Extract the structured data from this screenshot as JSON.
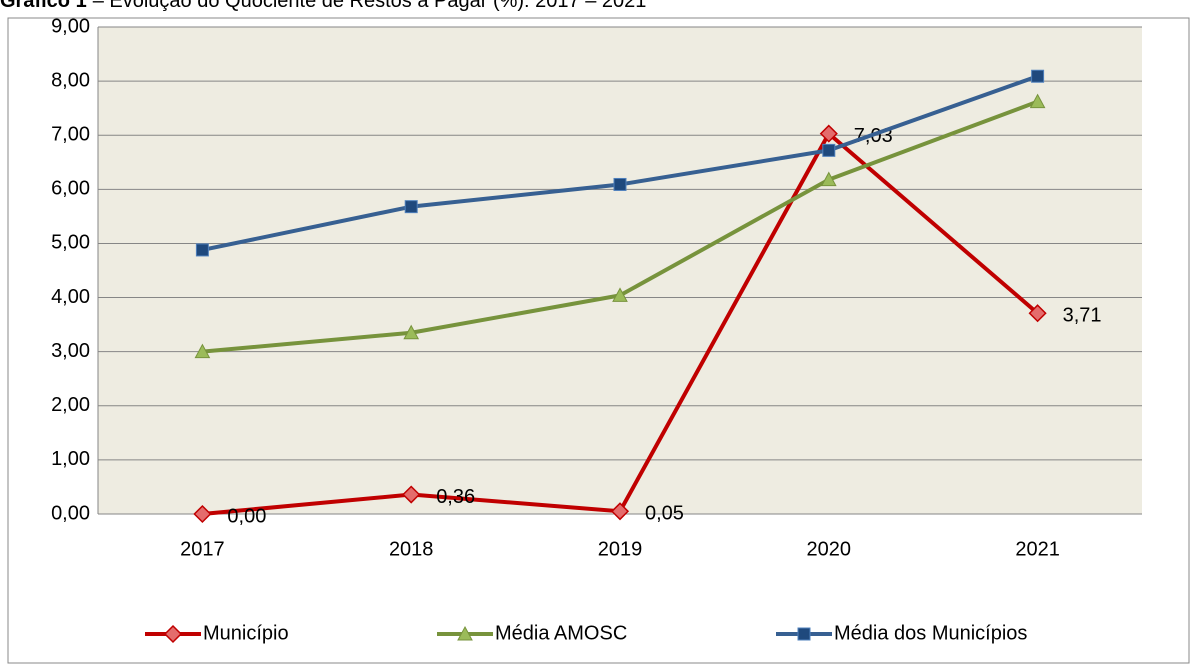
{
  "chart_data": {
    "type": "line",
    "title_label": "Gráfico 1",
    "title": "– Evolução do Quociente de Restos a Pagar (%): 2017 – 2021",
    "categories": [
      "2017",
      "2018",
      "2019",
      "2020",
      "2021"
    ],
    "series": [
      {
        "name": "Município",
        "color": "#c00000",
        "marker": "diamond",
        "values": [
          0,
          0.36,
          0.05,
          7.03,
          3.71
        ],
        "value_labels": [
          "0,00",
          "0,36",
          "0,05",
          "7,03",
          "3,71"
        ]
      },
      {
        "name": "Média AMOSC",
        "color": "#77933c",
        "marker": "triangle",
        "values": [
          3.0,
          3.35,
          4.04,
          6.18,
          7.62
        ]
      },
      {
        "name": "Média dos Municípios",
        "color": "#376092",
        "marker": "square",
        "values": [
          4.88,
          5.68,
          6.09,
          6.72,
          8.09
        ]
      }
    ],
    "ylim": [
      0,
      9
    ],
    "yticks": [
      {
        "value": 0,
        "label": "0,00"
      },
      {
        "value": 1,
        "label": "1,00"
      },
      {
        "value": 2,
        "label": "2,00"
      },
      {
        "value": 3,
        "label": "3,00"
      },
      {
        "value": 4,
        "label": "4,00"
      },
      {
        "value": 5,
        "label": "5,00"
      },
      {
        "value": 6,
        "label": "6,00"
      },
      {
        "value": 7,
        "label": "7,00"
      },
      {
        "value": 8,
        "label": "8,00"
      },
      {
        "value": 9,
        "label": "9,00"
      }
    ],
    "grid": true,
    "legend": "bottom"
  }
}
